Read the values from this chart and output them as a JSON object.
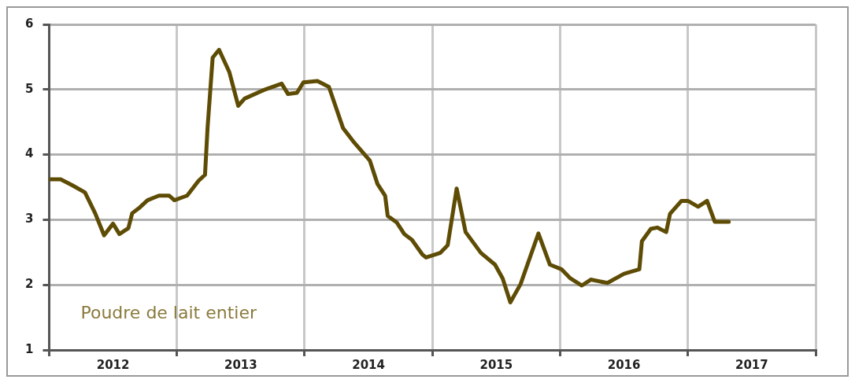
{
  "chart_data": {
    "type": "line",
    "annotations": [
      "Poudre de lait entier"
    ],
    "x": [
      2012.0,
      2012.09,
      2012.18,
      2012.28,
      2012.36,
      2012.43,
      2012.5,
      2012.55,
      2012.62,
      2012.65,
      2012.71,
      2012.77,
      2012.86,
      2012.94,
      2012.98,
      2013.08,
      2013.17,
      2013.22,
      2013.24,
      2013.28,
      2013.33,
      2013.41,
      2013.48,
      2013.53,
      2013.69,
      2013.82,
      2013.87,
      2013.94,
      2013.99,
      2014.1,
      2014.19,
      2014.3,
      2014.39,
      2014.51,
      2014.57,
      2014.63,
      2014.65,
      2014.72,
      2014.78,
      2014.84,
      2014.92,
      2014.95,
      2015.06,
      2015.12,
      2015.19,
      2015.26,
      2015.38,
      2015.49,
      2015.55,
      2015.61,
      2015.69,
      2015.83,
      2015.92,
      2016.01,
      2016.08,
      2016.17,
      2016.24,
      2016.37,
      2016.5,
      2016.62,
      2016.64,
      2016.71,
      2016.76,
      2016.83,
      2016.86,
      2016.95,
      2017.0,
      2017.08,
      2017.15,
      2017.21,
      2017.32
    ],
    "series": [
      {
        "color": "#5e4c05",
        "values": [
          3.62,
          3.62,
          3.53,
          3.42,
          3.1,
          2.76,
          2.94,
          2.78,
          2.87,
          3.1,
          3.19,
          3.3,
          3.37,
          3.37,
          3.3,
          3.37,
          3.6,
          3.69,
          4.41,
          5.49,
          5.61,
          5.27,
          4.75,
          4.86,
          5.0,
          5.09,
          4.93,
          4.95,
          5.11,
          5.13,
          5.04,
          4.41,
          4.18,
          3.91,
          3.55,
          3.37,
          3.06,
          2.96,
          2.78,
          2.69,
          2.47,
          2.42,
          2.49,
          2.61,
          3.48,
          2.81,
          2.49,
          2.31,
          2.1,
          1.73,
          2.01,
          2.79,
          2.31,
          2.24,
          2.1,
          1.99,
          2.08,
          2.03,
          2.17,
          2.24,
          2.67,
          2.86,
          2.88,
          2.81,
          3.09,
          3.29,
          3.29,
          3.2,
          3.29,
          2.97,
          2.97
        ]
      }
    ],
    "xlim": [
      2012,
      2018
    ],
    "xticks": [
      {
        "value": 2012,
        "label": null
      },
      {
        "value": 2012.5,
        "label": "2012"
      },
      {
        "value": 2013,
        "label": null
      },
      {
        "value": 2013.5,
        "label": "2013"
      },
      {
        "value": 2014,
        "label": null
      },
      {
        "value": 2014.5,
        "label": "2014"
      },
      {
        "value": 2015,
        "label": null
      },
      {
        "value": 2015.5,
        "label": "2015"
      },
      {
        "value": 2016,
        "label": null
      },
      {
        "value": 2016.5,
        "label": "2016"
      },
      {
        "value": 2017,
        "label": null
      },
      {
        "value": 2017.5,
        "label": "2017"
      },
      {
        "value": 2018,
        "label": null
      }
    ],
    "ylim": [
      1,
      6
    ],
    "yticks": [
      1,
      2,
      3,
      4,
      5,
      6
    ],
    "grid": true,
    "legend": false,
    "marker": "none",
    "line_style": "solid"
  }
}
